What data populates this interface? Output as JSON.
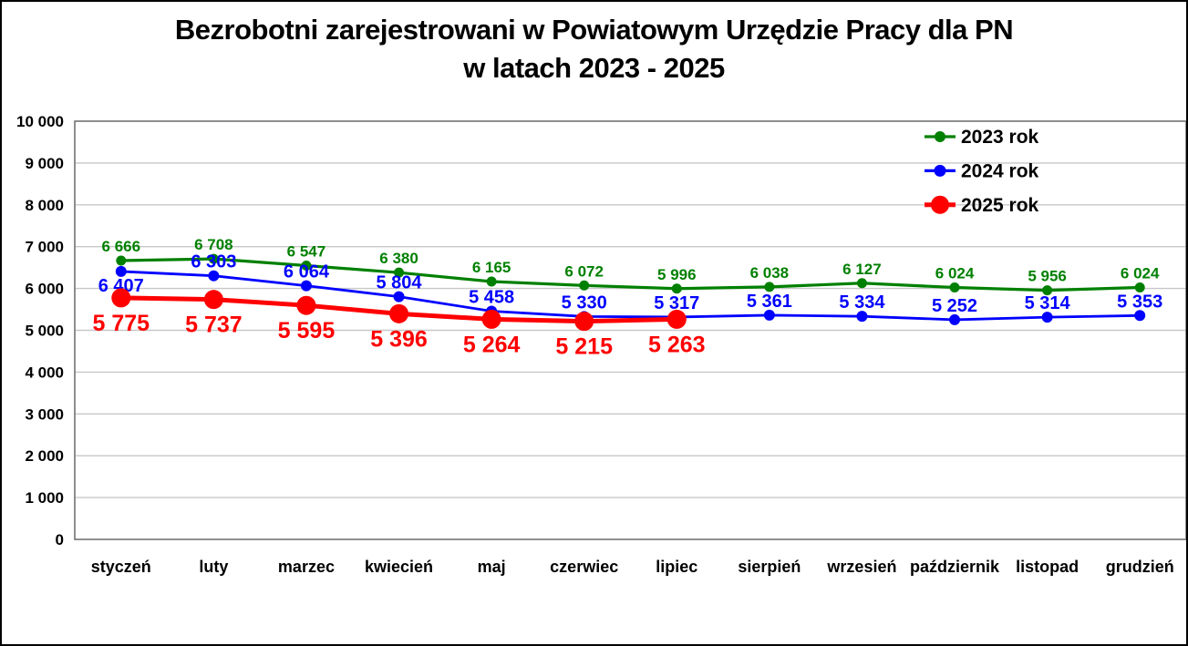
{
  "chart": {
    "title_line1": "Bezrobotni zarejestrowani w Powiatowym Urzędzie Pracy dla PN",
    "title_line2": "w latach 2023 - 2025"
  },
  "chart_data": {
    "type": "line",
    "title": "Bezrobotni zarejestrowani w Powiatowym Urzędzie Pracy dla PN w latach 2023 - 2025",
    "xlabel": "",
    "ylabel": "",
    "grid": true,
    "gridline_color": "#C8C8C8",
    "plot_border_color": "#737373",
    "legend_position": "top-right-inside",
    "categories": [
      "styczeń",
      "luty",
      "marzec",
      "kwiecień",
      "maj",
      "czerwiec",
      "lipiec",
      "sierpień",
      "wrzesień",
      "październik",
      "listopad",
      "grudzień"
    ],
    "y_axis": {
      "min": 0,
      "max": 10000,
      "step": 1000,
      "tick_labels": [
        "10 000",
        "9 000",
        "8 000",
        "7 000",
        "6 000",
        "5 000",
        "4 000",
        "3 000",
        "2 000",
        "1 000",
        "0"
      ]
    },
    "series": [
      {
        "name": "2023 rok",
        "color": "#008000",
        "values": [
          6666,
          6708,
          6547,
          6380,
          6165,
          6072,
          5996,
          6038,
          6127,
          6024,
          5956,
          6024
        ],
        "labels": [
          "6 666",
          "6 708",
          "6 547",
          "6 380",
          "6 165",
          "6 072",
          "5 996",
          "6 038",
          "6 127",
          "6 024",
          "5 956",
          "6 024"
        ],
        "label_position": "above",
        "marker": "small"
      },
      {
        "name": "2024 rok",
        "color": "#0000FF",
        "values": [
          6407,
          6303,
          6064,
          5804,
          5458,
          5330,
          5317,
          5361,
          5334,
          5252,
          5314,
          5353
        ],
        "labels": [
          "6 407",
          "6 303",
          "6 064",
          "5 804",
          "5 458",
          "5 330",
          "5 317",
          "5 361",
          "5 334",
          "5 252",
          "5 314",
          "5 353"
        ],
        "label_position": "above",
        "label_position_overrides": {
          "0": "below"
        },
        "marker": "small"
      },
      {
        "name": "2025 rok",
        "color": "#FF0000",
        "values": [
          5775,
          5737,
          5595,
          5396,
          5264,
          5215,
          5263
        ],
        "labels": [
          "5 775",
          "5 737",
          "5 595",
          "5 396",
          "5 264",
          "5 215",
          "5 263"
        ],
        "label_position": "below",
        "marker": "large"
      }
    ]
  }
}
